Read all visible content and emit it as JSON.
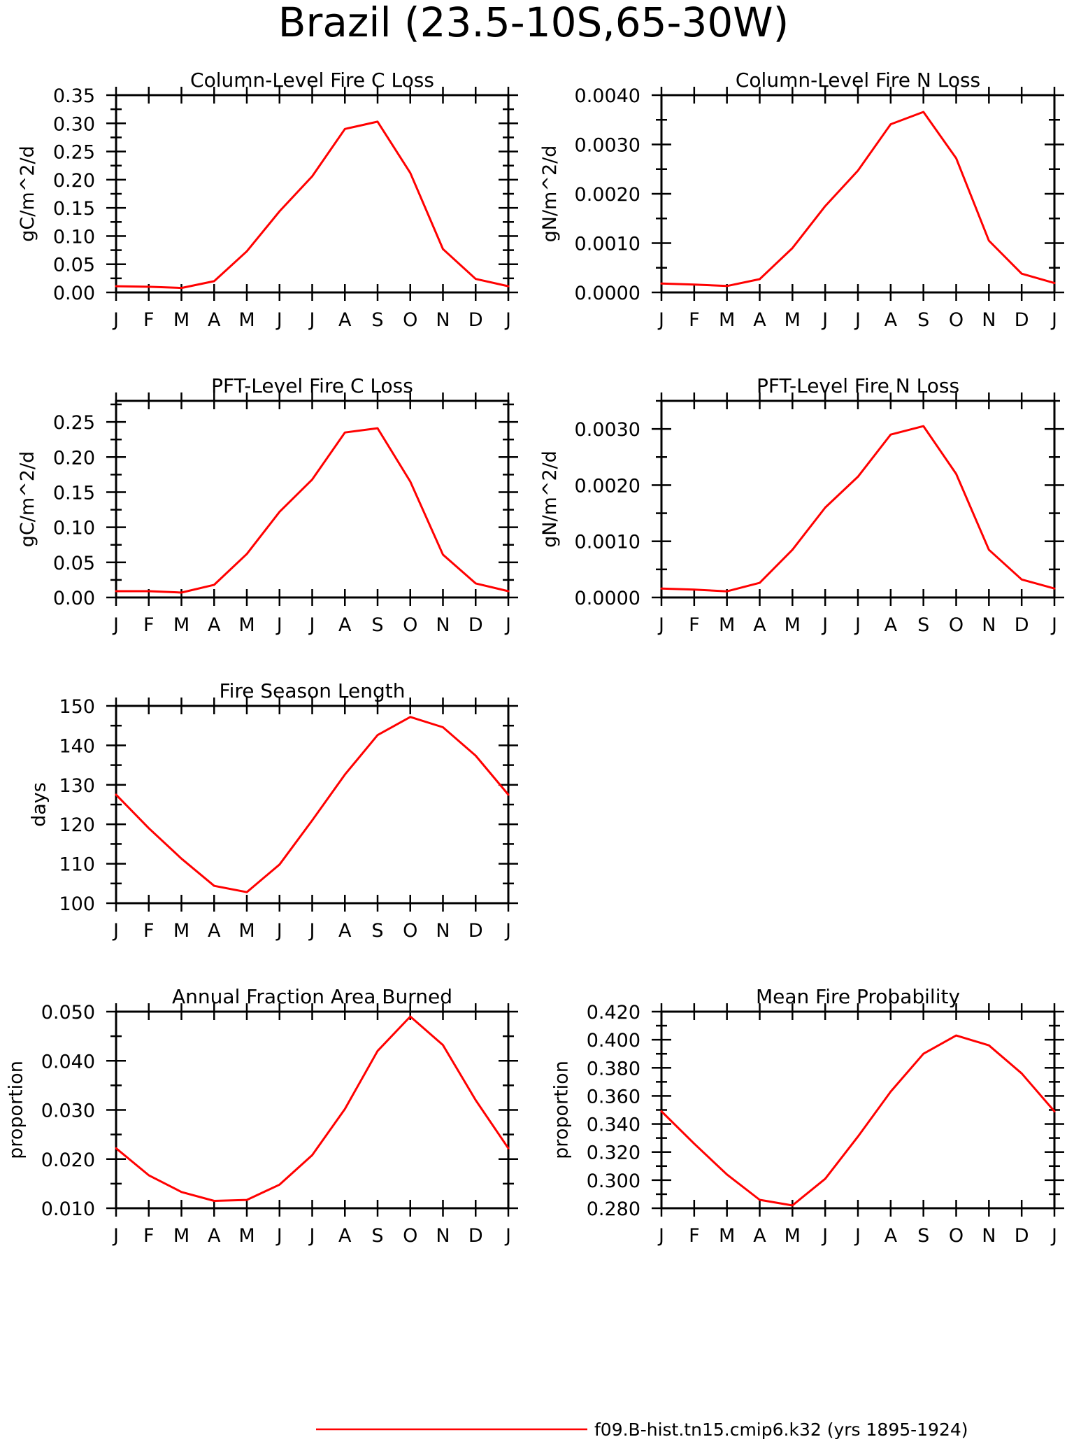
{
  "figure": {
    "title": "Brazil (23.5-10S,65-30W)",
    "legend": {
      "label": "f09.B-hist.tn15.cmip6.k32 (yrs 1895-1924)",
      "color": "#ff0000"
    }
  },
  "chart_data": [
    {
      "type": "line",
      "title": "Column-Level Fire C Loss",
      "xlabel": "",
      "ylabel": "gC/m^2/d",
      "categories": [
        "J",
        "F",
        "M",
        "A",
        "M",
        "J",
        "J",
        "A",
        "S",
        "O",
        "N",
        "D",
        "J"
      ],
      "ylim": [
        0,
        0.35
      ],
      "yticks": [
        "0.00",
        "0.05",
        "0.10",
        "0.15",
        "0.20",
        "0.25",
        "0.30",
        "0.35"
      ],
      "grid": false,
      "series": [
        {
          "color": "#ff0000",
          "values": [
            0.011,
            0.01,
            0.008,
            0.02,
            0.073,
            0.144,
            0.206,
            0.29,
            0.303,
            0.212,
            0.077,
            0.024,
            0.011
          ]
        }
      ]
    },
    {
      "type": "line",
      "title": "Column-Level Fire N Loss",
      "xlabel": "",
      "ylabel": "gN/m^2/d",
      "categories": [
        "J",
        "F",
        "M",
        "A",
        "M",
        "J",
        "J",
        "A",
        "S",
        "O",
        "N",
        "D",
        "J"
      ],
      "ylim": [
        0,
        0.004
      ],
      "yticks": [
        "0.0000",
        "0.0010",
        "0.0020",
        "0.0030",
        "0.0040"
      ],
      "grid": false,
      "series": [
        {
          "color": "#ff0000",
          "values": [
            0.00018,
            0.00016,
            0.00013,
            0.00027,
            0.0009,
            0.00175,
            0.00247,
            0.00341,
            0.00366,
            0.00272,
            0.00105,
            0.00038,
            0.00019
          ]
        }
      ]
    },
    {
      "type": "line",
      "title": "PFT-Level Fire C Loss",
      "xlabel": "",
      "ylabel": "gC/m^2/d",
      "categories": [
        "J",
        "F",
        "M",
        "A",
        "M",
        "J",
        "J",
        "A",
        "S",
        "O",
        "N",
        "D",
        "J"
      ],
      "ylim": [
        0,
        0.28
      ],
      "yticks": [
        "0.00",
        "0.05",
        "0.10",
        "0.15",
        "0.20",
        "0.25"
      ],
      "grid": false,
      "series": [
        {
          "color": "#ff0000",
          "values": [
            0.009,
            0.009,
            0.007,
            0.018,
            0.062,
            0.122,
            0.168,
            0.235,
            0.241,
            0.165,
            0.061,
            0.02,
            0.009
          ]
        }
      ]
    },
    {
      "type": "line",
      "title": "PFT-Level Fire N Loss",
      "xlabel": "",
      "ylabel": "gN/m^2/d",
      "categories": [
        "J",
        "F",
        "M",
        "A",
        "M",
        "J",
        "J",
        "A",
        "S",
        "O",
        "N",
        "D",
        "J"
      ],
      "ylim": [
        0,
        0.0035
      ],
      "yticks": [
        "0.0000",
        "0.0010",
        "0.0020",
        "0.0030"
      ],
      "grid": false,
      "series": [
        {
          "color": "#ff0000",
          "values": [
            0.00016,
            0.00014,
            0.00011,
            0.00026,
            0.00085,
            0.0016,
            0.00215,
            0.0029,
            0.00305,
            0.0022,
            0.00085,
            0.00032,
            0.00016
          ]
        }
      ]
    },
    {
      "type": "line",
      "title": "Fire Season Length",
      "xlabel": "",
      "ylabel": "days",
      "categories": [
        "J",
        "F",
        "M",
        "A",
        "M",
        "J",
        "J",
        "A",
        "S",
        "O",
        "N",
        "D",
        "J"
      ],
      "ylim": [
        100,
        150
      ],
      "yticks": [
        "100",
        "110",
        "120",
        "130",
        "140",
        "150"
      ],
      "grid": false,
      "series": [
        {
          "color": "#ff0000",
          "values": [
            127.5,
            119.0,
            111.3,
            104.4,
            102.8,
            109.8,
            121.0,
            132.6,
            142.6,
            147.2,
            144.6,
            137.4,
            127.5
          ]
        }
      ]
    },
    {
      "type": "line",
      "title": "Annual Fraction Area Burned",
      "xlabel": "",
      "ylabel": "proportion",
      "categories": [
        "J",
        "F",
        "M",
        "A",
        "M",
        "J",
        "J",
        "A",
        "S",
        "O",
        "N",
        "D",
        "J"
      ],
      "ylim": [
        0.01,
        0.05
      ],
      "yticks": [
        "0.010",
        "0.020",
        "0.030",
        "0.040",
        "0.050"
      ],
      "grid": false,
      "series": [
        {
          "color": "#ff0000",
          "values": [
            0.0222,
            0.0167,
            0.0133,
            0.0115,
            0.0117,
            0.0148,
            0.0208,
            0.0302,
            0.042,
            0.049,
            0.0432,
            0.032,
            0.0222
          ]
        }
      ]
    },
    {
      "type": "line",
      "title": "Mean Fire Probability",
      "xlabel": "",
      "ylabel": "proportion",
      "categories": [
        "J",
        "F",
        "M",
        "A",
        "M",
        "J",
        "J",
        "A",
        "S",
        "O",
        "N",
        "D",
        "J"
      ],
      "ylim": [
        0.28,
        0.42
      ],
      "yticks": [
        "0.280",
        "0.300",
        "0.320",
        "0.340",
        "0.360",
        "0.380",
        "0.400",
        "0.420"
      ],
      "grid": false,
      "series": [
        {
          "color": "#ff0000",
          "values": [
            0.349,
            0.326,
            0.304,
            0.286,
            0.282,
            0.301,
            0.331,
            0.363,
            0.39,
            0.403,
            0.396,
            0.376,
            0.349
          ]
        }
      ]
    }
  ]
}
